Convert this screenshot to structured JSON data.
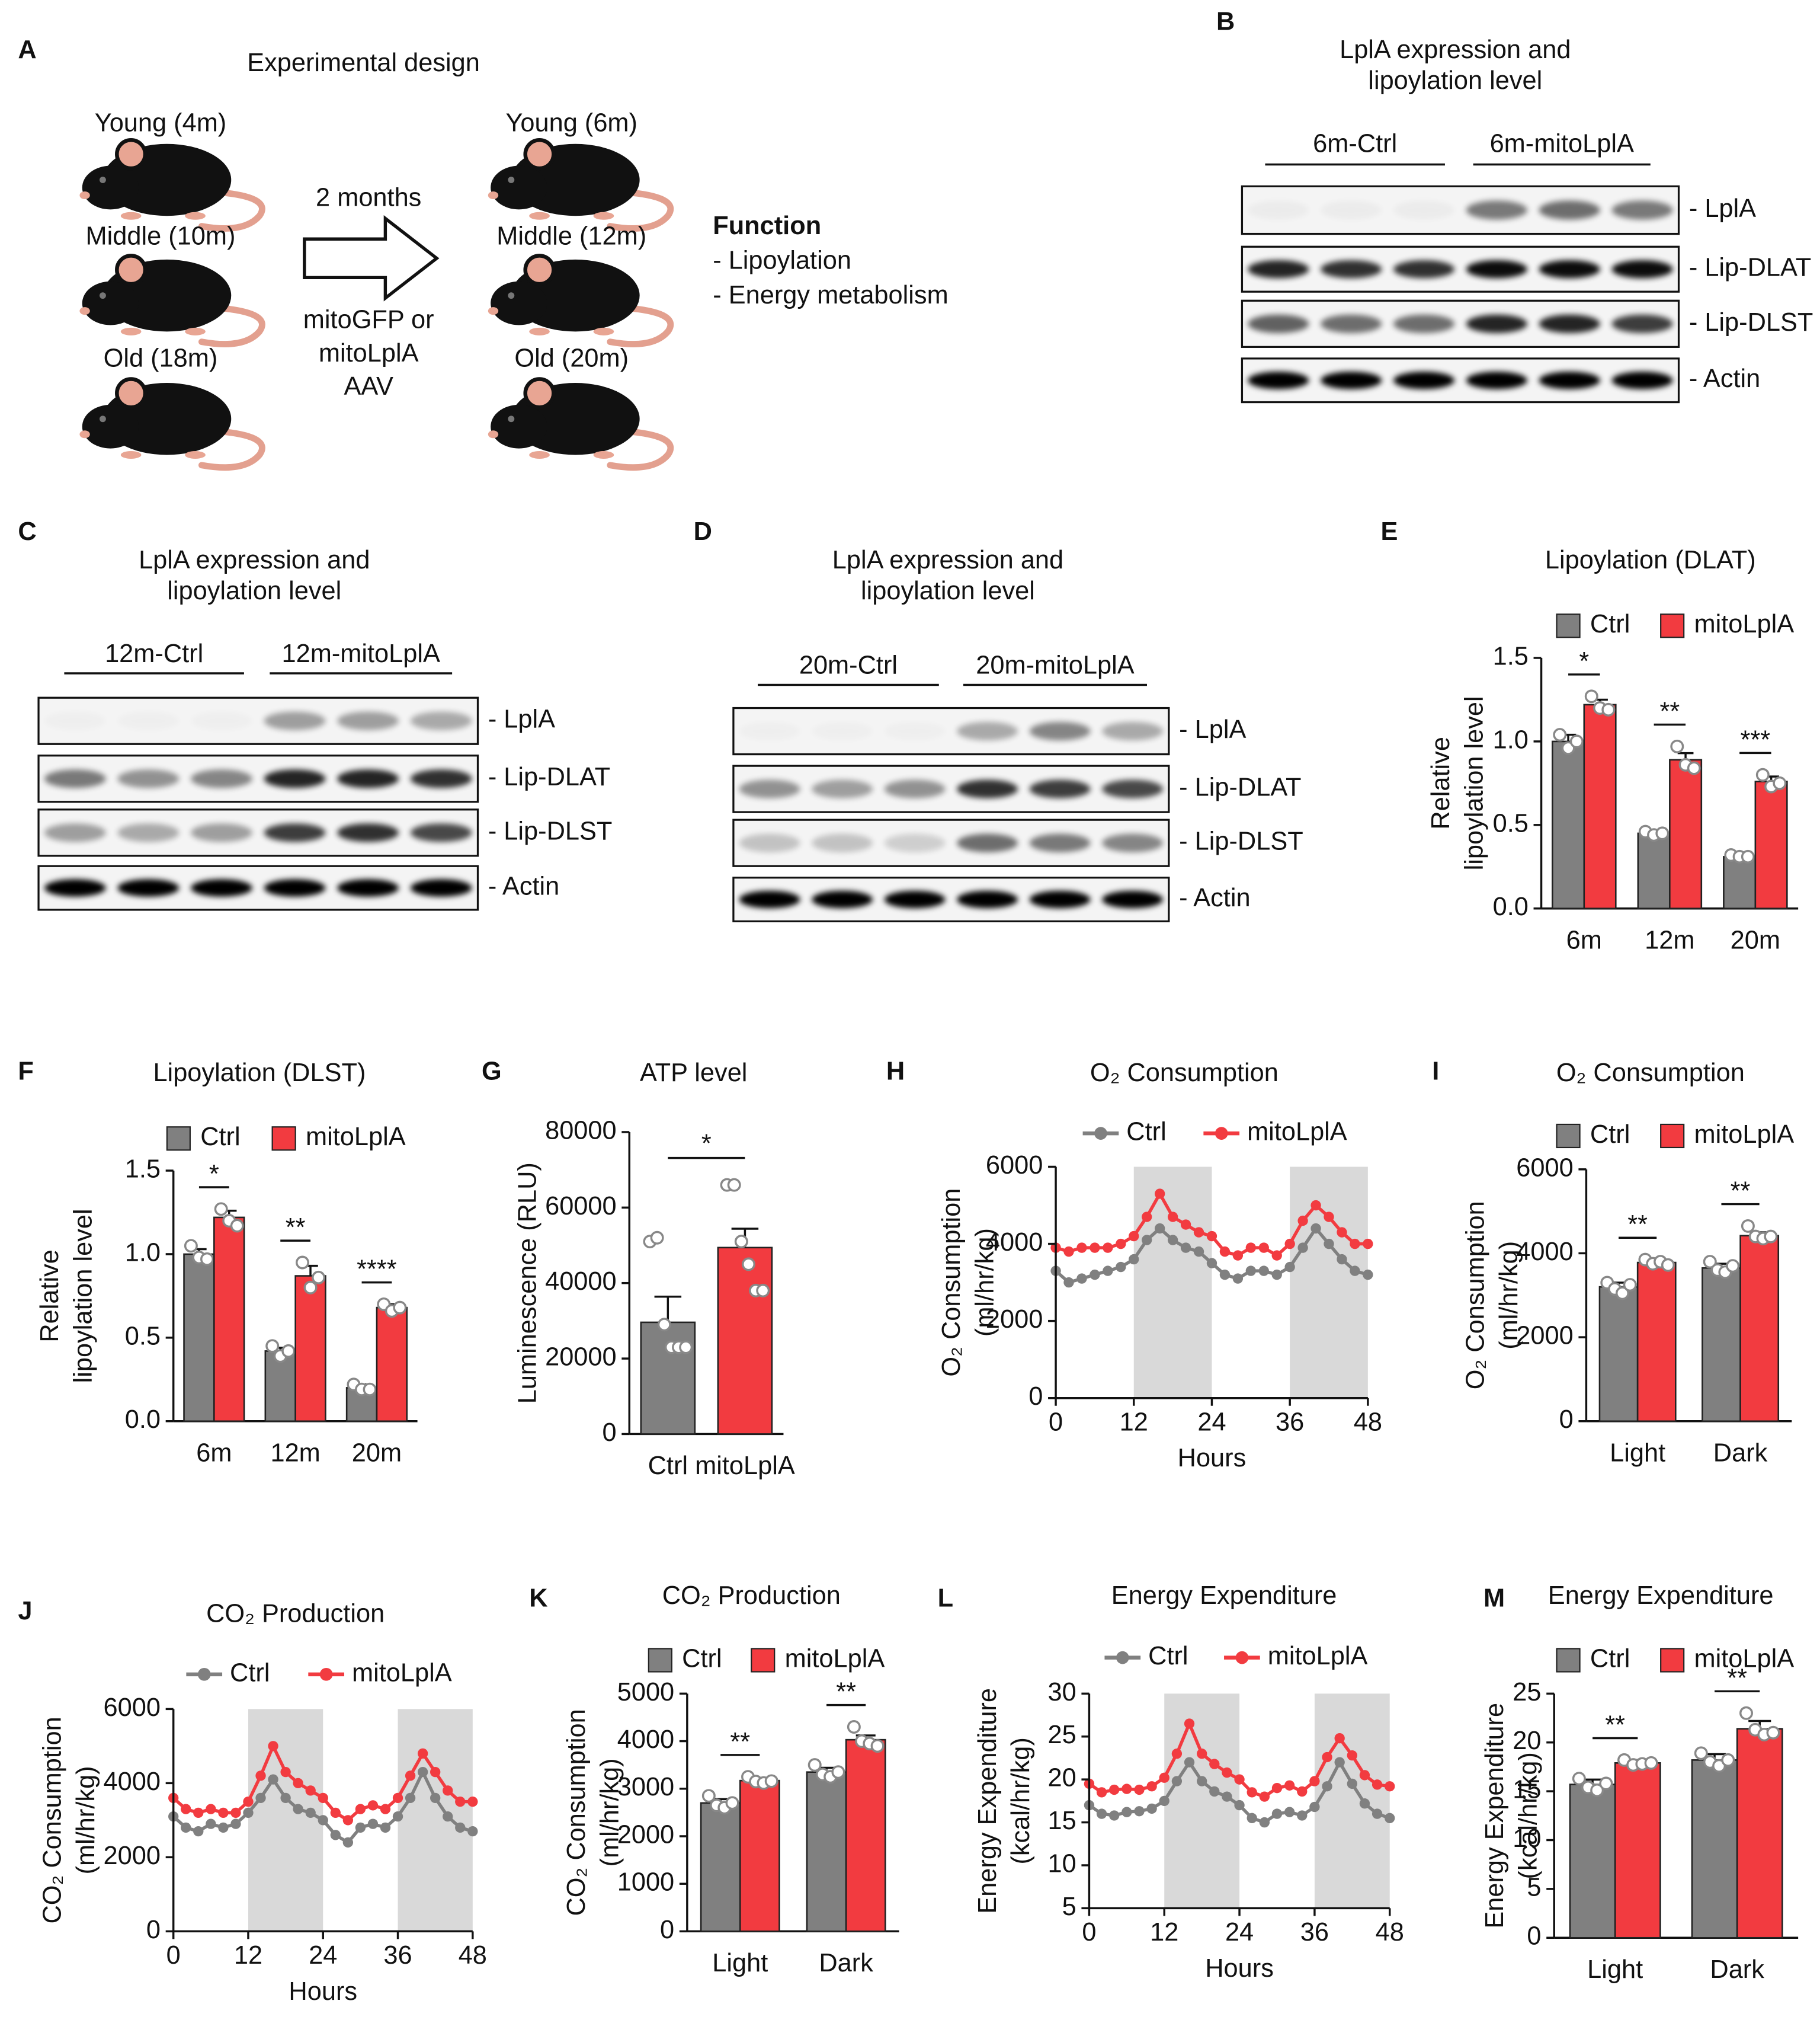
{
  "panel_labels": [
    "A",
    "B",
    "C",
    "D",
    "E",
    "F",
    "G",
    "H",
    "I",
    "J",
    "K",
    "L",
    "M"
  ],
  "design": {
    "title": "Experimental design",
    "left": [
      "Young (4m)",
      "Middle (10m)",
      "Old (18m)"
    ],
    "right": [
      "Young (6m)",
      "Middle (12m)",
      "Old (20m)"
    ],
    "arrow_top": "2 months",
    "arrow_bottom": [
      "mitoGFP or",
      "mitoLplA",
      "AAV"
    ],
    "function_title": "Function",
    "function_items": [
      "- Lipoylation",
      "- Energy metabolism"
    ]
  },
  "blots": [
    {
      "title": [
        "LplA expression and",
        "lipoylation level"
      ],
      "groups": [
        "6m-Ctrl",
        "6m-mitoLplA"
      ],
      "bands": [
        "- LplA",
        "- Lip-DLAT",
        "- Lip-DLST",
        "- Actin"
      ]
    },
    {
      "title": [
        "LplA expression and",
        "lipoylation level"
      ],
      "groups": [
        "12m-Ctrl",
        "12m-mitoLplA"
      ],
      "bands": [
        "- LplA",
        "- Lip-DLAT",
        "- Lip-DLST",
        "- Actin"
      ]
    },
    {
      "title": [
        "LplA expression and",
        "lipoylation level"
      ],
      "groups": [
        "20m-Ctrl",
        "20m-mitoLplA"
      ],
      "bands": [
        "- LplA",
        "- Lip-DLAT",
        "- Lip-DLST",
        "- Actin"
      ]
    }
  ],
  "chart_data": [
    {
      "type": "bar",
      "title": "Lipoylation (DLAT)",
      "ylabel": [
        "Relative",
        "lipoylation level"
      ],
      "categories": [
        "6m",
        "12m",
        "20m"
      ],
      "series": [
        {
          "name": "Ctrl",
          "color": "#808080",
          "values": [
            1.0,
            0.45,
            0.31
          ],
          "errors": [
            0.04,
            0.01,
            0.01
          ],
          "points": [
            [
              1.04,
              0.96,
              1.0
            ],
            [
              0.46,
              0.44,
              0.45
            ],
            [
              0.32,
              0.31,
              0.31
            ]
          ]
        },
        {
          "name": "mitoLplA",
          "color": "#f23b40",
          "values": [
            1.22,
            0.89,
            0.76
          ],
          "errors": [
            0.03,
            0.04,
            0.03
          ],
          "points": [
            [
              1.27,
              1.2,
              1.19
            ],
            [
              0.97,
              0.86,
              0.84
            ],
            [
              0.8,
              0.73,
              0.75
            ]
          ]
        }
      ],
      "significance": [
        "*",
        "**",
        "***"
      ],
      "ylim": [
        0,
        1.5
      ],
      "yticks": [
        {
          "value": 0,
          "label": "0.0"
        },
        {
          "value": 0.5,
          "label": "0.5"
        },
        {
          "value": 1,
          "label": "1.0"
        },
        {
          "value": 1.5,
          "label": "1.5"
        }
      ]
    },
    {
      "type": "bar",
      "title": "Lipoylation (DLST)",
      "ylabel": [
        "Relative",
        "lipoylation level"
      ],
      "categories": [
        "6m",
        "12m",
        "20m"
      ],
      "series": [
        {
          "name": "Ctrl",
          "color": "#808080",
          "values": [
            1.0,
            0.42,
            0.2
          ],
          "errors": [
            0.03,
            0.02,
            0.02
          ],
          "points": [
            [
              1.05,
              0.98,
              0.97
            ],
            [
              0.45,
              0.39,
              0.42
            ],
            [
              0.22,
              0.19,
              0.19
            ]
          ]
        },
        {
          "name": "mitoLplA",
          "color": "#f23b40",
          "values": [
            1.22,
            0.87,
            0.68
          ],
          "errors": [
            0.04,
            0.06,
            0.02
          ],
          "points": [
            [
              1.27,
              1.2,
              1.17
            ],
            [
              0.95,
              0.8,
              0.86
            ],
            [
              0.7,
              0.66,
              0.68
            ]
          ]
        }
      ],
      "significance": [
        "*",
        "**",
        "****"
      ],
      "ylim": [
        0,
        1.5
      ],
      "yticks": [
        {
          "value": 0,
          "label": "0.0"
        },
        {
          "value": 0.5,
          "label": "0.5"
        },
        {
          "value": 1,
          "label": "1.0"
        },
        {
          "value": 1.5,
          "label": "1.5"
        }
      ]
    },
    {
      "type": "bar",
      "title": "ATP level",
      "ylabel": "Luminescence (RLU)",
      "categories": [
        "Ctrl",
        "mitoLplA"
      ],
      "colors": [
        "#808080",
        "#f23b40"
      ],
      "values": [
        29600,
        49400
      ],
      "errors": [
        6800,
        5000
      ],
      "points": [
        [
          51000,
          52000,
          29000,
          23000,
          23000,
          23000
        ],
        [
          66000,
          66000,
          51000,
          45000,
          38000,
          38000
        ]
      ],
      "significance": [
        "*"
      ],
      "ylim": [
        0,
        80000
      ],
      "yticks": [
        0,
        20000,
        40000,
        60000,
        80000
      ]
    },
    {
      "type": "line",
      "title": "O₂ Consumption",
      "ylabel": [
        "O₂ Consumption",
        "(ml/hr/kg)"
      ],
      "xlabel": "Hours",
      "x": [
        0,
        2,
        4,
        6,
        8,
        10,
        12,
        14,
        16,
        18,
        20,
        22,
        24,
        26,
        28,
        30,
        32,
        34,
        36,
        38,
        40,
        42,
        44,
        46,
        48
      ],
      "series": [
        {
          "name": "Ctrl",
          "color": "#808080",
          "values": [
            3300,
            3000,
            3100,
            3200,
            3300,
            3400,
            3600,
            4100,
            4400,
            4100,
            3900,
            3800,
            3500,
            3200,
            3100,
            3300,
            3300,
            3200,
            3400,
            3900,
            4400,
            4000,
            3600,
            3300,
            3200
          ]
        },
        {
          "name": "mitoLplA",
          "color": "#f23b40",
          "values": [
            3900,
            3800,
            3900,
            3900,
            3900,
            4000,
            4200,
            4700,
            5300,
            4700,
            4500,
            4300,
            4200,
            3800,
            3700,
            3900,
            3900,
            3700,
            4000,
            4600,
            5000,
            4700,
            4300,
            4000,
            4000
          ]
        }
      ],
      "shaded": [
        [
          12,
          24
        ],
        [
          36,
          48
        ]
      ],
      "xlim": [
        0,
        48
      ],
      "xticks": [
        0,
        12,
        24,
        36,
        48
      ],
      "ylim": [
        0,
        6000
      ],
      "yticks": [
        0,
        2000,
        4000,
        6000
      ]
    },
    {
      "type": "bar",
      "title": "O₂ Consumption",
      "ylabel": [
        "O₂ Consumption",
        "(ml/hr/kg)"
      ],
      "categories": [
        "Light",
        "Dark"
      ],
      "series": [
        {
          "name": "Ctrl",
          "color": "#808080",
          "values": [
            3200,
            3650
          ],
          "errors": [
            100,
            100
          ],
          "points": [
            [
              3300,
              3150,
              3050,
              3250
            ],
            [
              3800,
              3600,
              3550,
              3700
            ]
          ]
        },
        {
          "name": "mitoLplA",
          "color": "#f23b40",
          "values": [
            3780,
            4420
          ],
          "errors": [
            60,
            80
          ],
          "points": [
            [
              3850,
              3750,
              3800,
              3720
            ],
            [
              4650,
              4400,
              4350,
              4400
            ]
          ]
        }
      ],
      "significance": [
        "**",
        "**"
      ],
      "ylim": [
        0,
        6000
      ],
      "yticks": [
        0,
        2000,
        4000,
        6000
      ]
    },
    {
      "type": "line",
      "title": "CO₂ Production",
      "ylabel": [
        "CO₂ Consumption",
        "(ml/hr/kg)"
      ],
      "xlabel": "Hours",
      "x": [
        0,
        2,
        4,
        6,
        8,
        10,
        12,
        14,
        16,
        18,
        20,
        22,
        24,
        26,
        28,
        30,
        32,
        34,
        36,
        38,
        40,
        42,
        44,
        46,
        48
      ],
      "series": [
        {
          "name": "Ctrl",
          "color": "#808080",
          "values": [
            3100,
            2800,
            2700,
            2900,
            2800,
            2900,
            3200,
            3600,
            4100,
            3600,
            3300,
            3200,
            3000,
            2600,
            2400,
            2800,
            2900,
            2800,
            3100,
            3600,
            4300,
            3600,
            3100,
            2800,
            2700
          ]
        },
        {
          "name": "mitoLplA",
          "color": "#f23b40",
          "values": [
            3600,
            3300,
            3200,
            3300,
            3200,
            3200,
            3500,
            4200,
            5000,
            4300,
            4000,
            3800,
            3600,
            3200,
            3000,
            3300,
            3400,
            3300,
            3600,
            4200,
            4800,
            4300,
            3800,
            3500,
            3500
          ]
        }
      ],
      "shaded": [
        [
          12,
          24
        ],
        [
          36,
          48
        ]
      ],
      "xlim": [
        0,
        48
      ],
      "xticks": [
        0,
        12,
        24,
        36,
        48
      ],
      "ylim": [
        0,
        6000
      ],
      "yticks": [
        0,
        2000,
        4000,
        6000
      ]
    },
    {
      "type": "bar",
      "title": "CO₂ Production",
      "ylabel": [
        "CO₂ Consumption",
        "(ml/hr/kg)"
      ],
      "categories": [
        "Light",
        "Dark"
      ],
      "series": [
        {
          "name": "Ctrl",
          "color": "#808080",
          "values": [
            2700,
            3350
          ],
          "errors": [
            80,
            90
          ],
          "points": [
            [
              2850,
              2650,
              2600,
              2700
            ],
            [
              3500,
              3300,
              3250,
              3350
            ]
          ]
        },
        {
          "name": "mitoLplA",
          "color": "#f23b40",
          "values": [
            3170,
            4030
          ],
          "errors": [
            40,
            90
          ],
          "points": [
            [
              3250,
              3150,
              3120,
              3160
            ],
            [
              4300,
              4000,
              3950,
              3900
            ]
          ]
        }
      ],
      "significance": [
        "**",
        "**"
      ],
      "ylim": [
        0,
        5000
      ],
      "yticks": [
        0,
        1000,
        2000,
        3000,
        4000,
        5000
      ]
    },
    {
      "type": "line",
      "title": "Energy Expenditure",
      "ylabel": [
        "Energy Expenditure",
        "(kcal/hr/kg)"
      ],
      "xlabel": "Hours",
      "x": [
        0,
        2,
        4,
        6,
        8,
        10,
        12,
        14,
        16,
        18,
        20,
        22,
        24,
        26,
        28,
        30,
        32,
        34,
        36,
        38,
        40,
        42,
        44,
        46,
        48
      ],
      "series": [
        {
          "name": "Ctrl",
          "color": "#808080",
          "values": [
            17,
            16,
            15.8,
            16.2,
            16.3,
            16.6,
            17.5,
            19.8,
            22,
            19.8,
            18.6,
            18,
            17,
            15.5,
            15,
            16,
            16.2,
            15.8,
            16.8,
            19.2,
            22,
            19.5,
            17.2,
            16,
            15.5
          ]
        },
        {
          "name": "mitoLplA",
          "color": "#f23b40",
          "values": [
            19.5,
            18.5,
            18.8,
            18.9,
            18.8,
            19.2,
            20.2,
            23,
            26.5,
            23,
            21.8,
            20.8,
            20,
            18.5,
            18,
            19,
            19.3,
            18.6,
            19.8,
            22.6,
            24.8,
            22.8,
            20.5,
            19.4,
            19.2
          ]
        }
      ],
      "shaded": [
        [
          12,
          24
        ],
        [
          36,
          48
        ]
      ],
      "xlim": [
        0,
        48
      ],
      "xticks": [
        0,
        12,
        24,
        36,
        48
      ],
      "ylim": [
        5,
        30
      ],
      "yticks": [
        5,
        10,
        15,
        20,
        25,
        30
      ]
    },
    {
      "type": "bar",
      "title": "Energy Expenditure",
      "ylabel": [
        "Energy Expenditure",
        "(kcal/hr/kg)"
      ],
      "categories": [
        "Light",
        "Dark"
      ],
      "series": [
        {
          "name": "Ctrl",
          "color": "#808080",
          "values": [
            15.7,
            18.2
          ],
          "errors": [
            0.5,
            0.6
          ],
          "points": [
            [
              16.3,
              15.4,
              15.1,
              15.8
            ],
            [
              18.9,
              18.0,
              17.6,
              18.2
            ]
          ]
        },
        {
          "name": "mitoLplA",
          "color": "#f23b40",
          "values": [
            17.9,
            21.4
          ],
          "errors": [
            0.3,
            0.8
          ],
          "points": [
            [
              18.2,
              17.7,
              17.8,
              17.9
            ],
            [
              23.0,
              21.3,
              20.8,
              21.0
            ]
          ]
        }
      ],
      "significance": [
        "**",
        "**"
      ],
      "ylim": [
        0,
        25
      ],
      "yticks": [
        0,
        5,
        10,
        15,
        20,
        25
      ]
    }
  ]
}
